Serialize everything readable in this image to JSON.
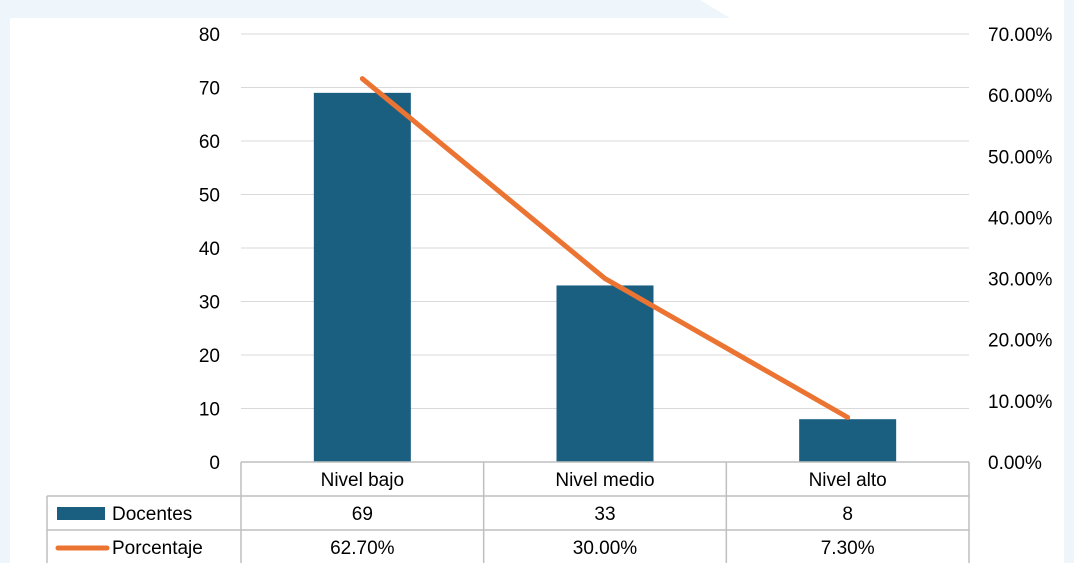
{
  "chart_data": {
    "type": "bar",
    "categories": [
      "Nivel bajo",
      "Nivel medio",
      "Nivel  alto"
    ],
    "series": [
      {
        "name": "Docentes",
        "type": "bar",
        "axis": "left",
        "values": [
          69,
          33,
          8
        ],
        "labels": [
          "69",
          "33",
          "8"
        ],
        "color": "#1a5e80"
      },
      {
        "name": "Porcentaje",
        "type": "line",
        "axis": "right",
        "values": [
          62.7,
          30.0,
          7.3
        ],
        "labels": [
          "62.70%",
          "30.00%",
          "7.30%"
        ],
        "color": "#ec7433"
      }
    ],
    "y_left": {
      "min": 0,
      "max": 80,
      "step": 10,
      "ticks": [
        "0",
        "10",
        "20",
        "30",
        "40",
        "50",
        "60",
        "70",
        "80"
      ]
    },
    "y_right": {
      "min": 0,
      "max": 70,
      "step": 10,
      "ticks": [
        "0.00%",
        "10.00%",
        "20.00%",
        "30.00%",
        "40.00%",
        "50.00%",
        "60.00%",
        "70.00%"
      ]
    },
    "grid": true,
    "legend": "data-table",
    "title": "",
    "xlabel": "",
    "ylabel": ""
  },
  "colors": {
    "bar": "#1a5e80",
    "line": "#ec7433",
    "grid": "#d9d9d9",
    "table_border": "#bfbfbf",
    "background_accent": "#eef6fb"
  }
}
